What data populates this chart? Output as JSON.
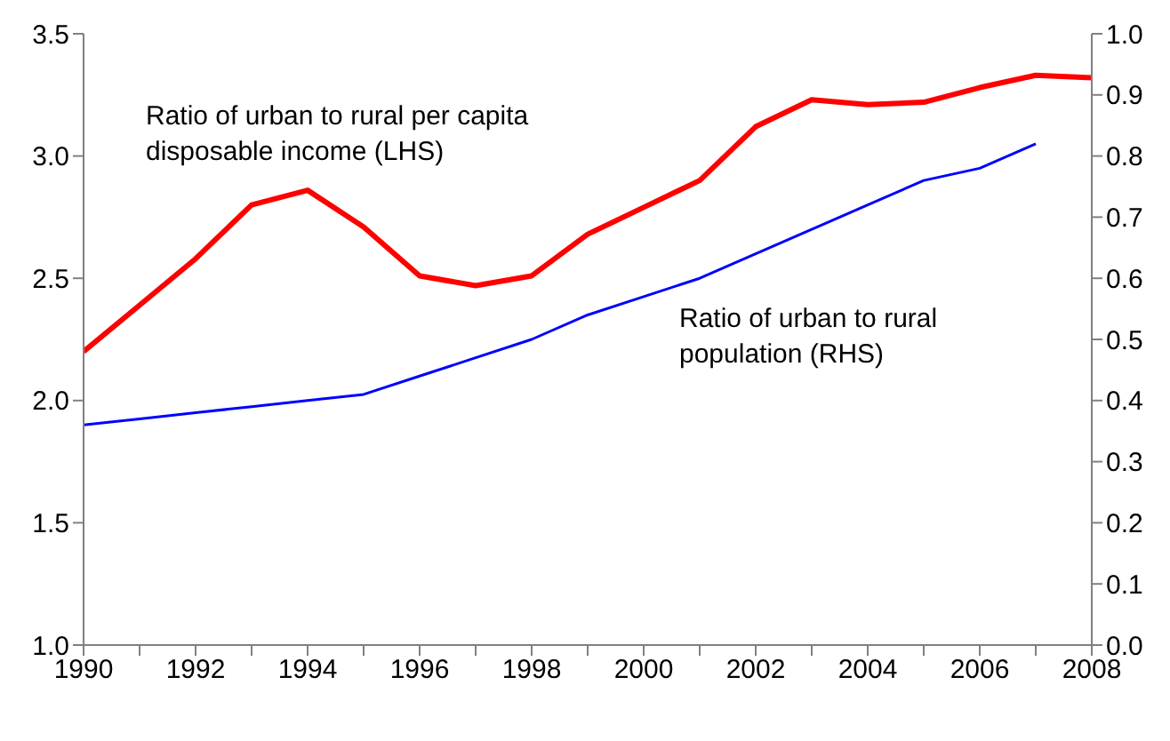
{
  "chart_data": {
    "type": "line",
    "x": [
      1990,
      1991,
      1992,
      1993,
      1994,
      1995,
      1996,
      1997,
      1998,
      1999,
      2000,
      2001,
      2002,
      2003,
      2004,
      2005,
      2006,
      2007,
      2008
    ],
    "series": [
      {
        "name": "Ratio of urban to rural per capita disposable income (LHS)",
        "color": "#ff0000",
        "values": [
          2.2,
          2.39,
          2.58,
          2.8,
          2.86,
          2.71,
          2.51,
          2.47,
          2.51,
          2.68,
          2.79,
          2.9,
          3.12,
          3.23,
          3.21,
          3.22,
          3.28,
          3.33,
          3.32
        ]
      },
      {
        "name": "Ratio of urban to rural population (RHS)",
        "color": "#0000ff",
        "axis": "y2",
        "values": [
          0.36,
          0.37,
          0.38,
          0.39,
          0.4,
          0.41,
          0.44,
          0.47,
          0.5,
          0.54,
          0.57,
          0.6,
          0.64,
          0.68,
          0.72,
          0.76,
          0.78,
          0.82,
          null
        ]
      }
    ],
    "xlim": [
      1990,
      2008
    ],
    "xticks": [
      1990,
      {
        "value": 1991,
        "label": null
      },
      1992,
      {
        "value": 1993,
        "label": null
      },
      1994,
      {
        "value": 1995,
        "label": null
      },
      1996,
      {
        "value": 1997,
        "label": null
      },
      1998,
      {
        "value": 1999,
        "label": null
      },
      2000,
      {
        "value": 2001,
        "label": null
      },
      2002,
      {
        "value": 2003,
        "label": null
      },
      2004,
      {
        "value": 2005,
        "label": null
      },
      2006,
      {
        "value": 2007,
        "label": null
      },
      2008
    ],
    "ylim": [
      1.0,
      3.5
    ],
    "yticks": [
      {
        "value": 1.0,
        "label": "1.0"
      },
      1.5,
      {
        "value": 2.0,
        "label": "2.0"
      },
      2.5,
      {
        "value": 3.0,
        "label": "3.0"
      },
      3.5
    ],
    "y2lim": [
      0,
      1.0
    ],
    "y2ticks": [
      {
        "value": 0,
        "label": "0.0"
      },
      0.1,
      0.2,
      0.3,
      0.4,
      0.5,
      0.6,
      0.7,
      0.8,
      0.9,
      {
        "value": 1.0,
        "label": "1.0"
      }
    ],
    "grid": false,
    "legend": false,
    "marker": "none",
    "line_style": "solid"
  }
}
